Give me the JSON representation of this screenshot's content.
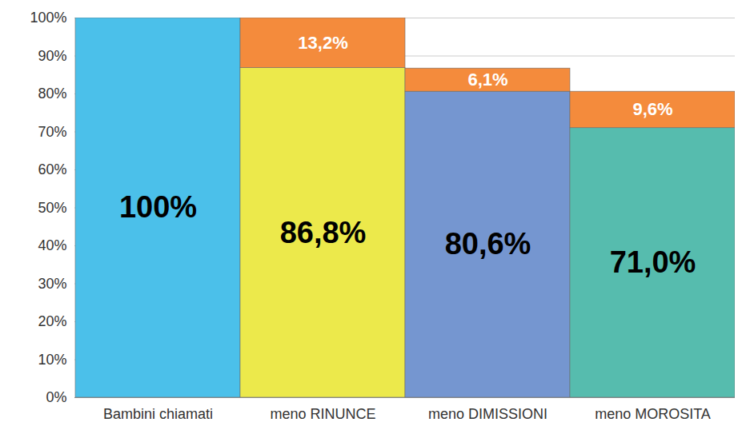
{
  "chart_data": {
    "type": "bar",
    "stacked": true,
    "data_labels": true,
    "grid": true,
    "categories": [
      "Bambini chiamati",
      "meno RINUNCE",
      "meno DIMISSIONI",
      "meno MOROSITA"
    ],
    "series": [
      {
        "values": [
          100,
          86.8,
          80.6,
          71.0
        ],
        "value_labels": [
          "100%",
          "86,8%",
          "80,6%",
          "71,0%"
        ],
        "colors": [
          "#4bc0ea",
          "#ece94b",
          "#7596d0",
          "#56bcae"
        ]
      },
      {
        "values": [
          null,
          13.2,
          6.1,
          9.6
        ],
        "value_labels": [
          null,
          "13,2%",
          "6,1%",
          "9,6%"
        ],
        "color": "#f48b3c"
      }
    ],
    "ylim": [
      0,
      100
    ],
    "yticks": [
      {
        "value": 0,
        "label": "0%"
      },
      {
        "value": 10,
        "label": "10%"
      },
      {
        "value": 20,
        "label": "20%"
      },
      {
        "value": 30,
        "label": "30%"
      },
      {
        "value": 40,
        "label": "40%"
      },
      {
        "value": 50,
        "label": "50%"
      },
      {
        "value": 60,
        "label": "60%"
      },
      {
        "value": 70,
        "label": "70%"
      },
      {
        "value": 80,
        "label": "80%"
      },
      {
        "value": 90,
        "label": "90%"
      },
      {
        "value": 100,
        "label": "100%"
      }
    ]
  }
}
